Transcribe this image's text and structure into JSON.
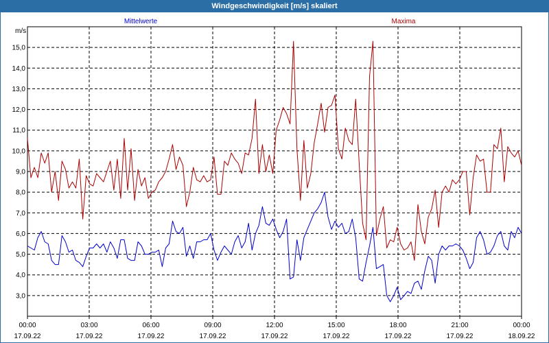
{
  "window": {
    "title": "Windgeschwindigkeit [m/s] skaliert"
  },
  "chart_data": {
    "type": "line",
    "title": "Windgeschwindigkeit [m/s] skaliert",
    "ylabel": "m/s",
    "ylim": [
      2.0,
      16.0
    ],
    "xlim": [
      0,
      24
    ],
    "grid": true,
    "yticks": [
      "3,0",
      "4,0",
      "5,0",
      "6,0",
      "7,0",
      "8,0",
      "9,0",
      "10,0",
      "11,0",
      "12,0",
      "13,0",
      "14,0",
      "15,0"
    ],
    "xticks": [
      {
        "time": "00:00",
        "date": "17.09.22"
      },
      {
        "time": "03:00",
        "date": "17.09.22"
      },
      {
        "time": "06:00",
        "date": "17.09.22"
      },
      {
        "time": "09:00",
        "date": "17.09.22"
      },
      {
        "time": "12:00",
        "date": "17.09.22"
      },
      {
        "time": "15:00",
        "date": "17.09.22"
      },
      {
        "time": "18:00",
        "date": "17.09.22"
      },
      {
        "time": "21:00",
        "date": "17.09.22"
      },
      {
        "time": "00:00",
        "date": "18.09.22"
      }
    ],
    "series": [
      {
        "name": "Mittelwerte",
        "color": "#0000cc",
        "values": [
          5.4,
          5.3,
          5.2,
          5.8,
          6.1,
          5.6,
          5.5,
          4.7,
          4.5,
          4.5,
          5.9,
          5.6,
          5.1,
          5.2,
          4.7,
          4.6,
          4.4,
          4.9,
          5.3,
          5.3,
          5.5,
          5.3,
          5.5,
          5.1,
          5.6,
          5.3,
          4.8,
          5.7,
          5.7,
          4.8,
          4.7,
          4.7,
          5.6,
          5.4,
          5.0,
          5.0,
          5.1,
          5.1,
          5.2,
          4.4,
          5.3,
          5.5,
          6.6,
          6.1,
          6.0,
          6.3,
          4.9,
          5.4,
          4.8,
          5.6,
          5.6,
          5.7,
          5.7,
          6.0,
          5.2,
          4.7,
          5.1,
          5.4,
          5.2,
          5.0,
          5.6,
          5.9,
          5.3,
          5.6,
          6.5,
          5.2,
          6.0,
          6.4,
          7.3,
          6.5,
          6.4,
          6.7,
          6.2,
          5.8,
          6.1,
          6.7,
          3.8,
          3.9,
          5.7,
          4.7,
          5.8,
          6.2,
          6.6,
          7.0,
          7.2,
          7.5,
          8.0,
          6.8,
          6.2,
          6.6,
          6.3,
          6.5,
          6.0,
          6.1,
          6.7,
          5.8,
          3.8,
          3.7,
          4.6,
          5.4,
          6.3,
          4.3,
          4.4,
          4.5,
          3.0,
          2.7,
          3.0,
          3.4,
          2.8,
          3.0,
          3.2,
          3.1,
          3.6,
          3.7,
          3.3,
          4.2,
          4.9,
          4.7,
          3.6,
          5.0,
          5.4,
          5.2,
          5.4,
          5.4,
          5.5,
          5.4,
          5.2,
          4.8,
          4.3,
          4.6,
          5.8,
          6.1,
          5.7,
          5.0,
          5.1,
          5.4,
          5.9,
          6.1,
          5.4,
          5.2,
          6.1,
          5.8,
          6.3,
          6.0
        ]
      },
      {
        "name": "Maxima",
        "color": "#aa0000",
        "values": [
          10.6,
          8.7,
          9.2,
          8.7,
          9.9,
          9.4,
          9.9,
          8.0,
          9.0,
          7.6,
          9.5,
          9.1,
          8.2,
          8.5,
          8.2,
          9.6,
          6.7,
          8.8,
          8.4,
          8.3,
          8.9,
          8.7,
          8.5,
          9.0,
          9.5,
          8.1,
          9.6,
          7.7,
          10.6,
          8.1,
          10.1,
          7.6,
          9.1,
          8.3,
          8.7,
          7.7,
          8.0,
          8.1,
          8.5,
          8.7,
          9.0,
          9.6,
          10.3,
          9.1,
          9.7,
          9.3,
          7.3,
          8.0,
          9.2,
          8.6,
          8.5,
          8.8,
          8.5,
          8.6,
          9.7,
          7.9,
          7.9,
          9.5,
          9.3,
          9.9,
          9.6,
          9.4,
          8.9,
          9.9,
          9.8,
          10.6,
          12.5,
          8.9,
          10.3,
          9.0,
          9.8,
          8.9,
          11.0,
          11.5,
          12.1,
          11.8,
          11.3,
          15.3,
          10.1,
          7.6,
          10.5,
          8.2,
          8.9,
          10.4,
          11.3,
          12.3,
          10.9,
          12.1,
          12.2,
          12.7,
          10.1,
          9.6,
          11.1,
          10.5,
          10.3,
          12.5,
          9.4,
          6.5,
          5.7,
          13.6,
          15.3,
          5.9,
          6.7,
          7.3,
          5.3,
          5.7,
          5.6,
          6.3,
          5.5,
          5.2,
          5.3,
          5.6,
          4.7,
          7.4,
          6.1,
          5.5,
          6.8,
          7.2,
          8.1,
          6.3,
          8.0,
          8.3,
          8.0,
          8.6,
          8.4,
          8.6,
          9.0,
          9.0,
          6.9,
          8.7,
          9.8,
          9.5,
          9.6,
          8.0,
          8.0,
          10.3,
          10.1,
          11.1,
          8.5,
          10.2,
          9.9,
          9.7,
          10.0,
          9.3
        ]
      }
    ]
  }
}
